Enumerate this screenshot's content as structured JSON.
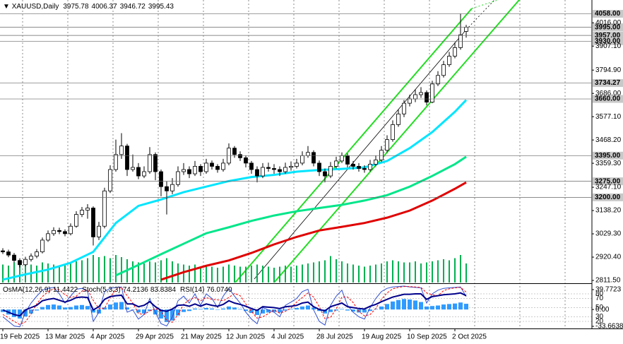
{
  "chart_data": [
    {
      "type": "candlestick",
      "title": "XAUUSD,Daily",
      "open": [
        2950,
        2945,
        2930,
        2905,
        2885,
        2910,
        2925,
        2945,
        3000,
        3030,
        3045,
        3040,
        3030,
        3065,
        3120,
        3140,
        3150,
        3015,
        3065,
        3230,
        3330,
        3400,
        3440,
        3330,
        3340,
        3300,
        3320,
        3400,
        3320,
        3250,
        3230,
        3260,
        3320,
        3330,
        3310,
        3345,
        3320,
        3360,
        3345,
        3330,
        3360,
        3430,
        3400,
        3385,
        3360,
        3330,
        3300,
        3340,
        3335,
        3330,
        3320,
        3340,
        3345,
        3360,
        3395,
        3410,
        3360,
        3320,
        3300,
        3345,
        3370,
        3395,
        3355,
        3345,
        3335,
        3330,
        3355,
        3375,
        3420,
        3470,
        3540,
        3590,
        3640,
        3660,
        3680,
        3690,
        3645,
        3730,
        3770,
        3820,
        3860,
        3900,
        3975.78
      ],
      "high": [
        2962,
        2955,
        2940,
        2915,
        2922,
        2938,
        2958,
        3012,
        3045,
        3060,
        3058,
        3050,
        3078,
        3135,
        3155,
        3168,
        3158,
        3085,
        3245,
        3350,
        3470,
        3500,
        3450,
        3400,
        3360,
        3345,
        3435,
        3410,
        3330,
        3275,
        3290,
        3345,
        3360,
        3345,
        3370,
        3355,
        3380,
        3372,
        3355,
        3380,
        3452,
        3440,
        3415,
        3395,
        3370,
        3345,
        3360,
        3362,
        3355,
        3345,
        3362,
        3368,
        3380,
        3415,
        3440,
        3420,
        3372,
        3335,
        3365,
        3390,
        3410,
        3405,
        3370,
        3360,
        3350,
        3375,
        3395,
        3440,
        3490,
        3560,
        3610,
        3655,
        3680,
        3705,
        3715,
        3700,
        3745,
        3790,
        3838,
        3880,
        3925,
        4059,
        4006.37
      ],
      "low": [
        2935,
        2920,
        2895,
        2872,
        2878,
        2900,
        2915,
        2938,
        2992,
        3020,
        3028,
        3018,
        3022,
        3058,
        3108,
        3100,
        2975,
        3000,
        3055,
        3220,
        3320,
        3380,
        3300,
        3320,
        3285,
        3290,
        3310,
        3280,
        3205,
        3120,
        3215,
        3250,
        3305,
        3290,
        3300,
        3300,
        3310,
        3330,
        3315,
        3320,
        3350,
        3385,
        3370,
        3340,
        3310,
        3270,
        3290,
        3320,
        3310,
        3300,
        3310,
        3325,
        3335,
        3350,
        3385,
        3345,
        3300,
        3270,
        3290,
        3335,
        3360,
        3340,
        3330,
        3320,
        3315,
        3320,
        3345,
        3365,
        3410,
        3460,
        3530,
        3575,
        3625,
        3645,
        3665,
        3630,
        3640,
        3720,
        3760,
        3810,
        3850,
        3890,
        3946.72
      ],
      "close": [
        2945,
        2930,
        2905,
        2885,
        2910,
        2925,
        2945,
        3000,
        3030,
        3045,
        3040,
        3030,
        3065,
        3120,
        3140,
        3150,
        3015,
        3065,
        3230,
        3330,
        3400,
        3440,
        3330,
        3340,
        3300,
        3320,
        3400,
        3320,
        3250,
        3230,
        3260,
        3320,
        3330,
        3310,
        3345,
        3320,
        3360,
        3345,
        3330,
        3360,
        3430,
        3400,
        3385,
        3360,
        3330,
        3300,
        3340,
        3335,
        3330,
        3320,
        3340,
        3345,
        3360,
        3395,
        3410,
        3360,
        3320,
        3300,
        3345,
        3370,
        3395,
        3355,
        3345,
        3335,
        3330,
        3355,
        3375,
        3420,
        3470,
        3540,
        3590,
        3640,
        3660,
        3680,
        3690,
        3645,
        3730,
        3770,
        3820,
        3860,
        3900,
        3960,
        3995.43
      ],
      "volume": [
        170,
        160,
        190,
        200,
        180,
        170,
        160,
        190,
        180,
        170,
        160,
        175,
        190,
        200,
        210,
        230,
        260,
        240,
        250,
        230,
        260,
        240,
        220,
        200,
        190,
        180,
        200,
        190,
        210,
        230,
        200,
        180,
        170,
        160,
        170,
        150,
        160,
        150,
        140,
        150,
        170,
        160,
        150,
        150,
        160,
        170,
        160,
        150,
        140,
        150,
        160,
        150,
        160,
        170,
        180,
        190,
        200,
        210,
        250,
        220,
        200,
        180,
        170,
        160,
        150,
        160,
        170,
        180,
        200,
        210,
        200,
        190,
        190,
        200,
        180,
        190,
        200,
        210,
        220,
        210,
        230,
        260,
        180
      ],
      "volume_color": "#00b050",
      "ylim": [
        2801.6,
        4122.6
      ],
      "yticks": [
        {
          "value": 4016,
          "label": "4016.00"
        },
        {
          "value": 3907.1,
          "label": "3907.10"
        },
        {
          "value": 3794.9,
          "label": "3794.90"
        },
        {
          "value": 3686,
          "label": "3686.00"
        },
        {
          "value": 3577.1,
          "label": "3577.10"
        },
        {
          "value": 3468.2,
          "label": "3468.20"
        },
        {
          "value": 3359.3,
          "label": "3359.30"
        },
        {
          "value": 3247.1,
          "label": "3247.10"
        },
        {
          "value": 3138.2,
          "label": "3138.20"
        },
        {
          "value": 3029.3,
          "label": "3029.30"
        },
        {
          "value": 2920.4,
          "label": "2920.40"
        },
        {
          "value": 2811.5,
          "label": "2811.50"
        }
      ],
      "levels": [
        {
          "value": 4058,
          "label": "4058.00"
        },
        {
          "value": 3995,
          "label": "3995.00"
        },
        {
          "value": 3957,
          "label": "3957.00"
        },
        {
          "value": 3930,
          "label": "3930.00"
        },
        3734.27,
        {
          "value": 3660,
          "label": "3660.00"
        },
        {
          "value": 3395,
          "label": "3395.00"
        },
        {
          "value": 3275,
          "label": "3275.00"
        },
        {
          "value": 3200,
          "label": "3200.00"
        }
      ],
      "xticks": [
        {
          "value": 0,
          "label": "19 Feb 2025"
        },
        {
          "value": 8,
          "label": "13 Mar 2025"
        },
        {
          "value": 16,
          "label": "4 Apr 2025"
        },
        {
          "value": 24,
          "label": "29 Apr 2025"
        },
        {
          "value": 32,
          "label": "21 May 2025"
        },
        {
          "value": 40,
          "label": "12 Jun 2025"
        },
        {
          "value": 48,
          "label": "4 Jul 2025"
        },
        {
          "value": 56,
          "label": "28 Jul 2025"
        },
        {
          "value": 64,
          "label": "19 Aug 2025"
        },
        {
          "value": 72,
          "label": "10 Sep 2025"
        },
        {
          "value": 80,
          "label": "2 Oct 2025"
        }
      ],
      "overlays": {
        "x": [
          0,
          4,
          8,
          12,
          16,
          20,
          24,
          28,
          32,
          36,
          40,
          44,
          48,
          52,
          56,
          60,
          64,
          68,
          72,
          76,
          80,
          82
        ],
        "series": [
          {
            "color": "#00e5ff",
            "values": [
              2815,
              2840,
              2862,
              2894,
              2945,
              3080,
              3160,
              3190,
              3224,
              3250,
              3276,
              3295,
              3305,
              3320,
              3328,
              3333,
              3340,
              3370,
              3430,
              3505,
              3600,
              3655
            ]
          },
          {
            "color": "#00e68a",
            "values": [
              null,
              null,
              null,
              null,
              null,
              2835,
              2884,
              2934,
              2983,
              3032,
              3060,
              3090,
              3115,
              3135,
              3150,
              3165,
              3185,
              3210,
              3250,
              3300,
              3355,
              3390
            ]
          },
          {
            "color": "#e00000",
            "values": [
              null,
              null,
              null,
              null,
              null,
              null,
              null,
              2815,
              2850,
              2880,
              2905,
              2940,
              2980,
              3015,
              3045,
              3062,
              3080,
              3105,
              3138,
              3185,
              3240,
              3270
            ]
          }
        ]
      }
    },
    {
      "type": "oscillator",
      "header": [
        {
          "name": "OsMA(12,26,9)",
          "values": [
            11.4422
          ]
        },
        {
          "name": "Stoch(5,3,3)",
          "values": [
            74.2136,
            83.8384
          ]
        },
        {
          "name": "RSI(14)",
          "values": [
            76.074
          ],
          "value_labels": [
            "76.0740"
          ]
        }
      ],
      "osma": {
        "axis": "y2",
        "color": "#2f9bff",
        "values": [
          -5,
          -10,
          -15,
          -18,
          -14,
          -8,
          -2,
          5,
          9,
          10,
          8,
          4,
          5,
          8,
          9,
          7,
          -6,
          -8,
          4,
          10,
          14,
          15,
          4,
          0,
          -6,
          -8,
          -3,
          -10,
          -18,
          -25,
          -22,
          -12,
          -5,
          -3,
          2,
          1,
          3,
          2,
          0,
          2,
          6,
          4,
          1,
          -3,
          -7,
          -11,
          -8,
          -6,
          -5,
          -6,
          -2,
          1,
          3,
          6,
          8,
          3,
          -3,
          -8,
          -5,
          -2,
          1,
          -2,
          -4,
          -6,
          -6,
          -3,
          1,
          6,
          11,
          16,
          19,
          21,
          20,
          18,
          15,
          6,
          7,
          8,
          10,
          11,
          12,
          14,
          11.4422
        ]
      },
      "stoch": [
        {
          "color": "#3050d0",
          "values": [
            30,
            20,
            10,
            8,
            40,
            60,
            75,
            88,
            92,
            94,
            80,
            60,
            75,
            90,
            92,
            85,
            20,
            40,
            85,
            92,
            94,
            95,
            40,
            45,
            25,
            35,
            70,
            40,
            15,
            10,
            30,
            65,
            75,
            60,
            80,
            55,
            80,
            70,
            50,
            75,
            92,
            75,
            60,
            40,
            25,
            15,
            50,
            45,
            40,
            30,
            55,
            62,
            70,
            85,
            90,
            45,
            20,
            12,
            55,
            75,
            88,
            55,
            40,
            30,
            25,
            50,
            70,
            85,
            92,
            95,
            96,
            97,
            95,
            94,
            93,
            60,
            80,
            88,
            92,
            93,
            94,
            95,
            74.2136
          ]
        },
        {
          "color": "#ff0000",
          "dash": true,
          "values": [
            35,
            28,
            20,
            13,
            19,
            36,
            58,
            74,
            85,
            91,
            89,
            78,
            72,
            75,
            86,
            89,
            66,
            48,
            48,
            72,
            90,
            94,
            76,
            60,
            37,
            35,
            43,
            48,
            42,
            22,
            18,
            35,
            57,
            67,
            72,
            65,
            72,
            68,
            67,
            65,
            72,
            81,
            76,
            58,
            42,
            27,
            30,
            37,
            45,
            38,
            42,
            49,
            62,
            72,
            82,
            73,
            52,
            26,
            29,
            47,
            73,
            73,
            61,
            42,
            32,
            35,
            48,
            68,
            82,
            91,
            94,
            96,
            96,
            95,
            94,
            82,
            78,
            76,
            87,
            91,
            93,
            94,
            83.8384
          ]
        }
      ],
      "rsi": {
        "color": "#00008b",
        "values": [
          45,
          40,
          35,
          32,
          45,
          50,
          55,
          65,
          68,
          70,
          66,
          62,
          66,
          72,
          73,
          72,
          45,
          52,
          68,
          74,
          76,
          77,
          58,
          58,
          52,
          55,
          63,
          52,
          44,
          42,
          47,
          55,
          56,
          53,
          58,
          53,
          58,
          55,
          53,
          57,
          65,
          60,
          57,
          53,
          48,
          44,
          52,
          51,
          50,
          48,
          52,
          53,
          55,
          60,
          62,
          52,
          46,
          43,
          52,
          56,
          60,
          52,
          50,
          48,
          47,
          53,
          57,
          63,
          68,
          73,
          76,
          79,
          79,
          80,
          80,
          68,
          74,
          76,
          78,
          79,
          80,
          82,
          76.074
        ]
      },
      "ylim": [
        0,
        100
      ],
      "yticks": [
        80,
        70,
        50,
        30,
        20
      ],
      "y2lim": [
        -33.6638,
        39.7723
      ],
      "y2ticks": [
        39.7723,
        {
          "value": 0,
          "label": "0.00"
        },
        -33.6638
      ]
    }
  ]
}
